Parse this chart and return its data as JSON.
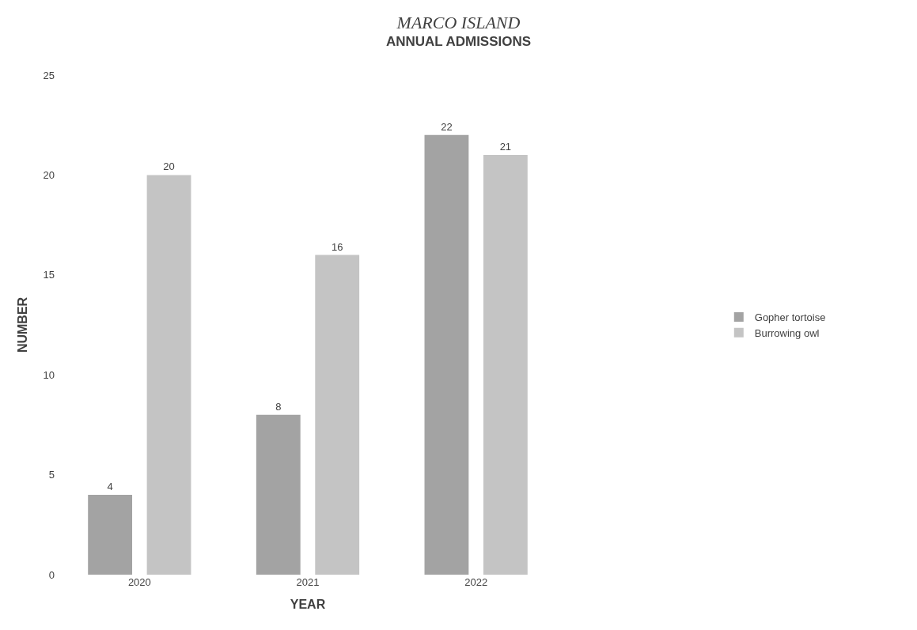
{
  "chart_data": {
    "type": "bar",
    "title": "MARCO ISLAND",
    "subtitle": "ANNUAL ADMISSIONS",
    "xlabel": "YEAR",
    "ylabel": "NUMBER",
    "categories": [
      "2020",
      "2021",
      "2022"
    ],
    "series": [
      {
        "name": "Gopher tortoise",
        "color": "#a3a3a3",
        "values": [
          4,
          8,
          22
        ]
      },
      {
        "name": "Burrowing owl",
        "color": "#c4c4c4",
        "values": [
          20,
          16,
          21
        ]
      }
    ],
    "ylim": [
      0,
      25
    ],
    "yticks": [
      0,
      5,
      10,
      15,
      20,
      25
    ],
    "legend": "right",
    "data_labels": true
  }
}
